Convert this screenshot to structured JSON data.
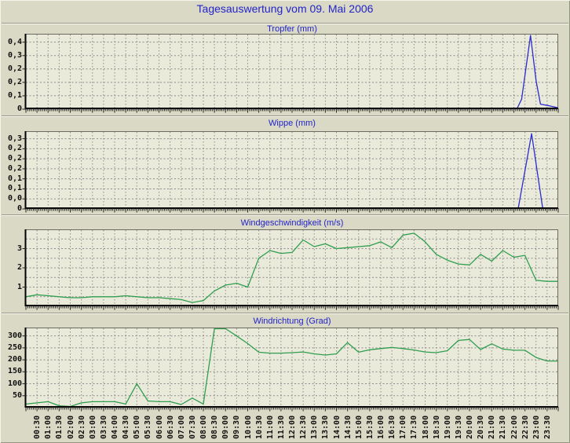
{
  "page": {
    "title": "Tagesauswertung vom 09. Mai 2006",
    "title_color": "#2323cc",
    "background": "#d9d9c5",
    "plot_background": "#eaeada",
    "grid_color": "#8c8c8c",
    "axis_color": "#000000",
    "frame_color": "#6b6b60",
    "tick_label_color": "#101010"
  },
  "x_axis": {
    "span_hours": 24,
    "minor_tick_minutes": 5,
    "major_tick_minutes": 30,
    "tick_labels": [
      "00:30",
      "01:00",
      "01:30",
      "02:00",
      "02:30",
      "03:00",
      "03:30",
      "04:00",
      "04:30",
      "05:00",
      "05:30",
      "06:00",
      "06:30",
      "07:00",
      "07:30",
      "08:00",
      "08:30",
      "09:00",
      "09:30",
      "10:00",
      "10:30",
      "11:00",
      "11:30",
      "12:00",
      "12:30",
      "13:00",
      "13:30",
      "14:00",
      "14:30",
      "15:00",
      "15:30",
      "16:00",
      "16:30",
      "17:00",
      "17:30",
      "18:00",
      "18:30",
      "19:00",
      "19:30",
      "20:00",
      "20:30",
      "21:00",
      "21:30",
      "22:00",
      "22:30",
      "23:00",
      "23:30"
    ]
  },
  "chart_data": [
    {
      "type": "line",
      "title": "Tropfer (mm)",
      "line_color": "#2b2bd0",
      "y_min": 0,
      "y_max": 0.45,
      "y_labels": [
        {
          "text": "0,4",
          "value": 0.4
        },
        {
          "text": "0,3",
          "value": 0.32
        },
        {
          "text": "0,2",
          "value": 0.24
        },
        {
          "text": "0,2",
          "value": 0.16
        },
        {
          "text": "0,1",
          "value": 0.08
        },
        {
          "text": "0",
          "value": 0
        }
      ],
      "extra_gridlines": [],
      "series": {
        "points": [
          [
            0,
            0
          ],
          [
            22.15,
            0
          ],
          [
            22.35,
            0.06
          ],
          [
            22.75,
            0.44
          ],
          [
            23.0,
            0.17
          ],
          [
            23.2,
            0.03
          ],
          [
            23.6,
            0.02
          ],
          [
            24,
            0.008
          ]
        ]
      }
    },
    {
      "type": "line",
      "title": "Wippe (mm)",
      "line_color": "#2b2bd0",
      "y_min": 0,
      "y_max": 0.31,
      "y_labels": [
        {
          "text": "0,3",
          "value": 0.28
        },
        {
          "text": "0,2",
          "value": 0.24
        },
        {
          "text": "0,2",
          "value": 0.2
        },
        {
          "text": "0,2",
          "value": 0.16
        },
        {
          "text": "0,1",
          "value": 0.12
        },
        {
          "text": "0,1",
          "value": 0.08
        },
        {
          "text": "0,0",
          "value": 0.04
        },
        {
          "text": "0",
          "value": 0
        }
      ],
      "extra_gridlines": [],
      "series": {
        "points": [
          [
            0,
            0
          ],
          [
            22.2,
            0
          ],
          [
            22.8,
            0.3
          ],
          [
            23.3,
            0
          ],
          [
            24,
            0
          ]
        ]
      }
    },
    {
      "type": "line",
      "title": "Windgeschwindigkeit (m/s)",
      "line_color": "#2f9e4f",
      "y_min": 0,
      "y_max": 4.0,
      "y_labels": [
        {
          "text": "3",
          "value": 3
        },
        {
          "text": "2",
          "value": 2
        },
        {
          "text": "1",
          "value": 1
        }
      ],
      "extra_gridlines": [
        3.5,
        2.5,
        1.5,
        0.5
      ],
      "series": {
        "start_hour": 0,
        "step_hours": 0.5,
        "values": [
          0.5,
          0.6,
          0.55,
          0.5,
          0.45,
          0.45,
          0.5,
          0.5,
          0.5,
          0.55,
          0.5,
          0.45,
          0.45,
          0.4,
          0.35,
          0.2,
          0.3,
          0.8,
          1.1,
          1.2,
          1.0,
          2.5,
          2.9,
          2.75,
          2.8,
          3.45,
          3.1,
          3.25,
          3.0,
          3.05,
          3.1,
          3.15,
          3.35,
          3.05,
          3.7,
          3.8,
          3.35,
          2.7,
          2.4,
          2.2,
          2.15,
          2.7,
          2.35,
          2.9,
          2.55,
          2.65,
          1.35,
          1.3
        ],
        "extend_to_edge": true
      }
    },
    {
      "type": "line",
      "title": "Windrichtung (Grad)",
      "line_color": "#2f9e4f",
      "y_min": 0,
      "y_max": 335,
      "y_labels": [
        {
          "text": "300",
          "value": 300
        },
        {
          "text": "250",
          "value": 250
        },
        {
          "text": "200",
          "value": 200
        },
        {
          "text": "150",
          "value": 150
        },
        {
          "text": "100",
          "value": 100
        },
        {
          "text": "50",
          "value": 50
        }
      ],
      "extra_gridlines": [],
      "series": {
        "start_hour": 0,
        "step_hours": 0.5,
        "values": [
          15,
          20,
          25,
          8,
          5,
          20,
          25,
          25,
          25,
          15,
          100,
          28,
          25,
          25,
          13,
          40,
          15,
          330,
          330,
          300,
          268,
          232,
          228,
          228,
          230,
          233,
          225,
          220,
          225,
          272,
          232,
          242,
          247,
          252,
          247,
          241,
          233,
          230,
          238,
          281,
          285,
          243,
          267,
          245,
          240,
          240,
          210,
          195
        ],
        "extend_to_edge": true
      }
    }
  ]
}
